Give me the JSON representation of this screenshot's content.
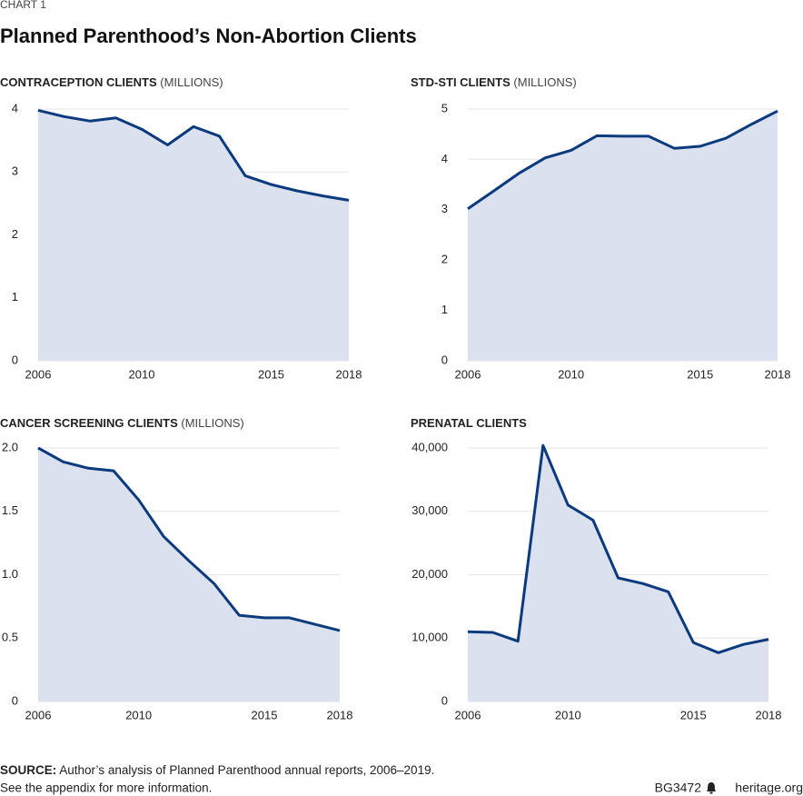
{
  "header": {
    "kicker": "CHART 1",
    "title": "Planned Parenthood’s Non-Abortion Clients"
  },
  "chart_data": [
    {
      "type": "line",
      "title": "CONTRACEPTION CLIENTS",
      "unit": "(MILLIONS)",
      "x": [
        2006,
        2007,
        2008,
        2009,
        2010,
        2011,
        2012,
        2013,
        2014,
        2015,
        2016,
        2017,
        2018
      ],
      "values": [
        3.98,
        3.88,
        3.81,
        3.86,
        3.68,
        3.43,
        3.72,
        3.57,
        2.94,
        2.8,
        2.7,
        2.62,
        2.55
      ],
      "xlim": [
        2006,
        2018
      ],
      "xticks": [
        2006,
        2010,
        2015,
        2018
      ],
      "ylim": [
        0,
        4
      ],
      "yticks": [
        0,
        1,
        2,
        3,
        4
      ],
      "color": "#0b3a7e",
      "fill_color": "#dce1f0",
      "grid": true
    },
    {
      "type": "line",
      "title": "STD-STI CLIENTS",
      "unit": "(MILLIONS)",
      "x": [
        2006,
        2007,
        2008,
        2009,
        2010,
        2011,
        2012,
        2013,
        2014,
        2015,
        2016,
        2017,
        2018
      ],
      "values": [
        3.02,
        3.37,
        3.73,
        4.03,
        4.18,
        4.47,
        4.46,
        4.46,
        4.22,
        4.26,
        4.42,
        4.7,
        4.96
      ],
      "xlim": [
        2006,
        2018
      ],
      "xticks": [
        2006,
        2010,
        2015,
        2018
      ],
      "ylim": [
        0,
        5
      ],
      "yticks": [
        0,
        1,
        2,
        3,
        4,
        5
      ],
      "color": "#0b3a7e",
      "fill_color": "#dce1f0",
      "grid": true
    },
    {
      "type": "line",
      "title": "CANCER SCREENING CLIENTS",
      "unit": "(MILLIONS)",
      "x": [
        2006,
        2007,
        2008,
        2009,
        2010,
        2011,
        2012,
        2013,
        2014,
        2015,
        2016,
        2017,
        2018
      ],
      "values": [
        2.0,
        1.89,
        1.84,
        1.82,
        1.59,
        1.3,
        1.11,
        0.93,
        0.68,
        0.66,
        0.66,
        0.61,
        0.56
      ],
      "xlim": [
        2006,
        2018
      ],
      "xticks": [
        2006,
        2010,
        2015,
        2018
      ],
      "ylim": [
        0,
        2
      ],
      "yticks": [
        0,
        0.5,
        {
          "value": 1,
          "label": "1.0"
        },
        1.5,
        {
          "value": 2,
          "label": "2.0"
        }
      ],
      "color": "#0b3a7e",
      "fill_color": "#dce1f0",
      "grid": true
    },
    {
      "type": "line",
      "title": "PRENATAL CLIENTS",
      "x": [
        2006,
        2007,
        2008,
        2009,
        2010,
        2011,
        2012,
        2013,
        2014,
        2015,
        2016,
        2017,
        2018
      ],
      "values": [
        11000,
        10900,
        9500,
        40400,
        31000,
        28600,
        19500,
        18600,
        17300,
        9300,
        7700,
        9000,
        9800
      ],
      "xlim": [
        2006,
        2018
      ],
      "xticks": [
        2006,
        2010,
        2015,
        2018
      ],
      "ylim": [
        0,
        40000
      ],
      "yticks": [
        0,
        {
          "value": 10000,
          "label": "10,000"
        },
        {
          "value": 20000,
          "label": "20,000"
        },
        {
          "value": 30000,
          "label": "30,000"
        },
        {
          "value": 40000,
          "label": "40,000"
        }
      ],
      "color": "#0b3a7e",
      "fill_color": "#dce1f0",
      "grid": true
    }
  ],
  "footer": {
    "source_label": "SOURCE:",
    "source_text": "Author’s analysis of Planned Parenthood annual reports, 2006–2019.",
    "note": "See the appendix for more information.",
    "id": "BG3472",
    "site": "heritage.org"
  }
}
